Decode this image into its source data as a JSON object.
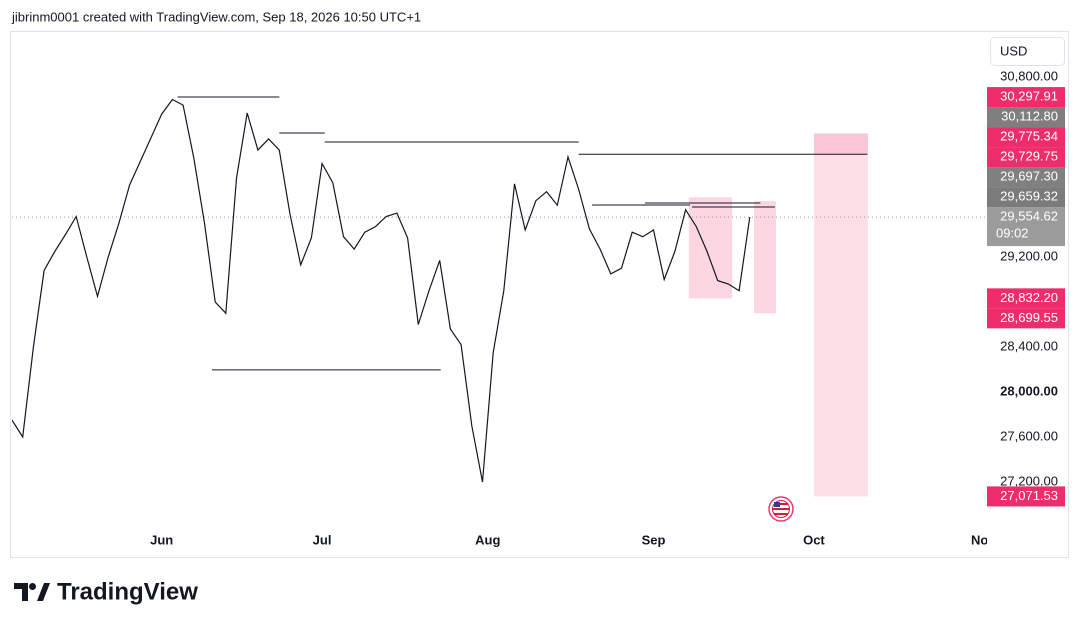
{
  "header": {
    "text": "jibrinm0001 created with TradingView.com, Sep 18, 2026 10:50 UTC+1"
  },
  "footer": {
    "brand": "TradingView"
  },
  "chart_data": {
    "type": "line",
    "currency": "USD",
    "color": "#131722",
    "x": [
      -28,
      -26,
      -24,
      -22,
      -20,
      -18,
      -16,
      -14,
      -12,
      -10,
      -8,
      -6,
      -4,
      -2,
      0,
      2,
      4,
      6,
      8,
      10,
      12,
      14,
      16,
      18,
      20,
      22,
      24,
      26,
      28,
      30,
      32,
      34,
      36,
      38,
      40,
      42,
      44,
      46,
      48,
      50,
      52,
      54,
      56,
      58,
      60,
      62,
      64,
      66,
      68,
      70,
      72,
      74,
      76,
      78,
      80,
      82,
      84,
      86,
      88,
      90,
      92,
      94,
      96,
      98,
      100,
      102,
      104,
      106,
      108,
      110
    ],
    "values": [
      27750,
      27600,
      28400,
      29080,
      29250,
      29400,
      29560,
      29200,
      28850,
      29200,
      29500,
      29840,
      30050,
      30260,
      30470,
      30600,
      30550,
      30080,
      29500,
      28800,
      28700,
      29900,
      30480,
      30150,
      30250,
      30150,
      29580,
      29130,
      29370,
      30030,
      29860,
      29380,
      29270,
      29420,
      29470,
      29560,
      29590,
      29370,
      28600,
      28900,
      29170,
      28560,
      28420,
      27700,
      27200,
      28350,
      28900,
      29850,
      29440,
      29700,
      29780,
      29660,
      30090,
      29800,
      29450,
      29270,
      29050,
      29100,
      29420,
      29380,
      29440,
      29000,
      29250,
      29620,
      29470,
      29250,
      28990,
      28960,
      28900,
      29554.62
    ],
    "xlim": [
      -28,
      154
    ],
    "ylim": [
      26773,
      31191
    ],
    "xticks": [
      {
        "value": 0,
        "label": "Jun"
      },
      {
        "value": 30,
        "label": "Jul"
      },
      {
        "value": 61,
        "label": "Aug"
      },
      {
        "value": 92,
        "label": "Sep"
      },
      {
        "value": 122,
        "label": "Oct"
      },
      {
        "value": 153,
        "label": "No"
      }
    ],
    "yticks": [
      {
        "value": 30800,
        "label": "30,800.00"
      },
      {
        "value": 29200,
        "label": "29,200.00"
      },
      {
        "value": 28400,
        "label": "28,400.00"
      },
      {
        "value": 28000,
        "label": "28,000.00",
        "bold": true
      },
      {
        "value": 27600,
        "label": "27,600.00"
      },
      {
        "value": 27200,
        "label": "27,200.00"
      }
    ],
    "grid": false,
    "levels": [
      {
        "price": 30622,
        "from": 3,
        "to": 22
      },
      {
        "price": 30302,
        "from": 22,
        "to": 30.5
      },
      {
        "price": 30222,
        "from": 30.5,
        "to": 78
      },
      {
        "price": 30112.8,
        "from": 78,
        "to": 132
      },
      {
        "price": 28196,
        "from": 9.4,
        "to": 52.2
      },
      {
        "price": 29662,
        "from": 80.5,
        "to": 98.8
      },
      {
        "price": 29680,
        "from": 90.4,
        "to": 112
      },
      {
        "price": 29644,
        "from": 99.2,
        "to": 114.7
      }
    ],
    "zones": [
      {
        "top": 29729.75,
        "bottom": 28832.2,
        "from": 98.6,
        "to": 106.7,
        "color": "rgba(242,54,106,0.2)"
      },
      {
        "top": 29697.3,
        "bottom": 28699.55,
        "from": 110.8,
        "to": 114.9,
        "color": "rgba(242,54,106,0.2)"
      },
      {
        "top": 30297.91,
        "bottom": 27071.53,
        "from": 122,
        "to": 132.1,
        "color": "rgba(242,54,106,0.16)"
      },
      {
        "top": 30297.91,
        "bottom": 30112.8,
        "from": 122,
        "to": 132.1,
        "color": "rgba(242,54,106,0.14)"
      }
    ],
    "price_tags": [
      {
        "value": 30297.91,
        "label": "30,297.91",
        "color": "#ef2d6a"
      },
      {
        "value": 30112.8,
        "label": "30,112.80",
        "color": "#7f7f7f"
      },
      {
        "value": 29775.34,
        "label": "29,775.34",
        "color": "#ef2d6a"
      },
      {
        "value": 29729.75,
        "label": "29,729.75",
        "color": "#ef2d6a"
      },
      {
        "value": 29697.3,
        "label": "29,697.30",
        "color": "#808080"
      },
      {
        "value": 29659.32,
        "label": "29,659.32",
        "color": "#7b7b7b"
      },
      {
        "value": 28832.2,
        "label": "28,832.20",
        "color": "#ef2d6a"
      },
      {
        "value": 28699.55,
        "label": "28,699.55",
        "color": "#ef2d6a"
      },
      {
        "value": 27071.53,
        "label": "27,071.53",
        "color": "#ef2d6a"
      }
    ],
    "last_price": {
      "value": 29554.62,
      "label": "29,554.62",
      "countdown": "09:02",
      "color": "#9b9b9b"
    }
  }
}
